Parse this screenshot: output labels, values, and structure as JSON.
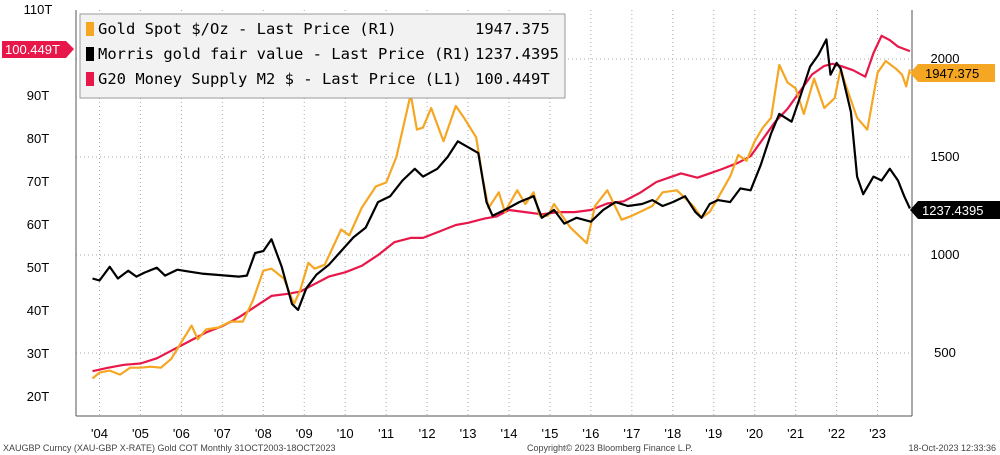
{
  "chart_data": {
    "type": "line",
    "x_labels": [
      "'04",
      "'05",
      "'06",
      "'07",
      "'08",
      "'09",
      "'10",
      "'11",
      "'12",
      "'13",
      "'14",
      "'15",
      "'16",
      "'17",
      "'18",
      "'19",
      "'20",
      "'21",
      "'22",
      "'23"
    ],
    "left_axis": {
      "ticks": [
        "20T",
        "30T",
        "40T",
        "50T",
        "60T",
        "70T",
        "80T",
        "90T",
        "100T",
        "110T"
      ],
      "range": [
        20,
        110
      ],
      "unit": "T"
    },
    "right_axis": {
      "ticks": [
        "500",
        "1000",
        "1500",
        "2000"
      ],
      "range": [
        230,
        2150
      ]
    },
    "legend": [
      {
        "name": "Gold Spot $/Oz - Last Price (R1)",
        "last": "1947.375",
        "color": "#f5a623"
      },
      {
        "name": "Morris gold fair value - Last Price (R1)",
        "last": "1237.4395",
        "color": "#000000"
      },
      {
        "name": "G20 Money Supply M2 $ - Last Price (L1)",
        "last": "100.449T",
        "color": "#e8174a"
      }
    ],
    "tags": {
      "left": "100.449T",
      "right_gold": "1947.375",
      "right_fair": "1237.4395"
    },
    "series": [
      {
        "key": "gold",
        "axis": "right",
        "color": "#f5a623",
        "points": [
          [
            2003.83,
            370
          ],
          [
            2004.0,
            400
          ],
          [
            2004.25,
            410
          ],
          [
            2004.5,
            390
          ],
          [
            2004.75,
            425
          ],
          [
            2005.0,
            425
          ],
          [
            2005.25,
            430
          ],
          [
            2005.5,
            425
          ],
          [
            2005.75,
            470
          ],
          [
            2006.0,
            555
          ],
          [
            2006.25,
            640
          ],
          [
            2006.4,
            570
          ],
          [
            2006.6,
            620
          ],
          [
            2006.9,
            630
          ],
          [
            2007.2,
            660
          ],
          [
            2007.5,
            660
          ],
          [
            2007.75,
            770
          ],
          [
            2008.0,
            920
          ],
          [
            2008.2,
            930
          ],
          [
            2008.5,
            880
          ],
          [
            2008.75,
            750
          ],
          [
            2008.9,
            820
          ],
          [
            2009.1,
            960
          ],
          [
            2009.25,
            930
          ],
          [
            2009.5,
            950
          ],
          [
            2009.9,
            1130
          ],
          [
            2010.1,
            1100
          ],
          [
            2010.4,
            1240
          ],
          [
            2010.75,
            1350
          ],
          [
            2011.0,
            1370
          ],
          [
            2011.25,
            1500
          ],
          [
            2011.6,
            1820
          ],
          [
            2011.75,
            1640
          ],
          [
            2011.9,
            1650
          ],
          [
            2012.1,
            1750
          ],
          [
            2012.4,
            1580
          ],
          [
            2012.7,
            1760
          ],
          [
            2012.9,
            1700
          ],
          [
            2013.2,
            1600
          ],
          [
            2013.35,
            1400
          ],
          [
            2013.5,
            1240
          ],
          [
            2013.75,
            1320
          ],
          [
            2013.9,
            1220
          ],
          [
            2014.2,
            1330
          ],
          [
            2014.4,
            1260
          ],
          [
            2014.6,
            1320
          ],
          [
            2014.75,
            1200
          ],
          [
            2014.95,
            1200
          ],
          [
            2015.1,
            1260
          ],
          [
            2015.5,
            1140
          ],
          [
            2015.9,
            1060
          ],
          [
            2016.1,
            1250
          ],
          [
            2016.4,
            1330
          ],
          [
            2016.75,
            1180
          ],
          [
            2017.0,
            1200
          ],
          [
            2017.5,
            1250
          ],
          [
            2017.75,
            1320
          ],
          [
            2018.1,
            1330
          ],
          [
            2018.5,
            1250
          ],
          [
            2018.7,
            1190
          ],
          [
            2018.9,
            1220
          ],
          [
            2019.1,
            1290
          ],
          [
            2019.4,
            1400
          ],
          [
            2019.6,
            1510
          ],
          [
            2019.8,
            1480
          ],
          [
            2020.0,
            1580
          ],
          [
            2020.2,
            1650
          ],
          [
            2020.4,
            1700
          ],
          [
            2020.6,
            1970
          ],
          [
            2020.8,
            1880
          ],
          [
            2021.0,
            1850
          ],
          [
            2021.2,
            1720
          ],
          [
            2021.45,
            1900
          ],
          [
            2021.7,
            1750
          ],
          [
            2021.95,
            1800
          ],
          [
            2022.1,
            1950
          ],
          [
            2022.2,
            1880
          ],
          [
            2022.5,
            1700
          ],
          [
            2022.75,
            1640
          ],
          [
            2023.0,
            1930
          ],
          [
            2023.2,
            1990
          ],
          [
            2023.45,
            1950
          ],
          [
            2023.6,
            1920
          ],
          [
            2023.7,
            1860
          ],
          [
            2023.79,
            1947
          ]
        ]
      },
      {
        "key": "fair",
        "axis": "right",
        "color": "#000000",
        "points": [
          [
            2003.83,
            880
          ],
          [
            2004.0,
            870
          ],
          [
            2004.25,
            940
          ],
          [
            2004.45,
            880
          ],
          [
            2004.7,
            920
          ],
          [
            2004.9,
            890
          ],
          [
            2005.1,
            910
          ],
          [
            2005.4,
            935
          ],
          [
            2005.6,
            895
          ],
          [
            2005.9,
            925
          ],
          [
            2006.2,
            915
          ],
          [
            2006.5,
            905
          ],
          [
            2006.8,
            900
          ],
          [
            2007.1,
            895
          ],
          [
            2007.4,
            890
          ],
          [
            2007.6,
            895
          ],
          [
            2007.8,
            1010
          ],
          [
            2008.0,
            1020
          ],
          [
            2008.2,
            1080
          ],
          [
            2008.45,
            940
          ],
          [
            2008.7,
            750
          ],
          [
            2008.85,
            720
          ],
          [
            2009.05,
            830
          ],
          [
            2009.3,
            900
          ],
          [
            2009.6,
            950
          ],
          [
            2009.9,
            1020
          ],
          [
            2010.2,
            1090
          ],
          [
            2010.5,
            1140
          ],
          [
            2010.8,
            1270
          ],
          [
            2011.1,
            1300
          ],
          [
            2011.4,
            1380
          ],
          [
            2011.7,
            1440
          ],
          [
            2011.9,
            1400
          ],
          [
            2012.25,
            1440
          ],
          [
            2012.5,
            1500
          ],
          [
            2012.75,
            1580
          ],
          [
            2013.0,
            1550
          ],
          [
            2013.25,
            1520
          ],
          [
            2013.45,
            1270
          ],
          [
            2013.6,
            1200
          ],
          [
            2013.9,
            1230
          ],
          [
            2014.25,
            1270
          ],
          [
            2014.6,
            1300
          ],
          [
            2014.8,
            1190
          ],
          [
            2015.1,
            1230
          ],
          [
            2015.35,
            1160
          ],
          [
            2015.65,
            1190
          ],
          [
            2016.0,
            1170
          ],
          [
            2016.3,
            1230
          ],
          [
            2016.6,
            1270
          ],
          [
            2016.9,
            1250
          ],
          [
            2017.25,
            1260
          ],
          [
            2017.5,
            1280
          ],
          [
            2017.75,
            1250
          ],
          [
            2018.0,
            1270
          ],
          [
            2018.3,
            1300
          ],
          [
            2018.55,
            1220
          ],
          [
            2018.7,
            1190
          ],
          [
            2018.9,
            1260
          ],
          [
            2019.1,
            1280
          ],
          [
            2019.4,
            1270
          ],
          [
            2019.65,
            1340
          ],
          [
            2019.9,
            1330
          ],
          [
            2020.15,
            1460
          ],
          [
            2020.4,
            1620
          ],
          [
            2020.6,
            1720
          ],
          [
            2020.9,
            1680
          ],
          [
            2021.1,
            1800
          ],
          [
            2021.35,
            1960
          ],
          [
            2021.55,
            2020
          ],
          [
            2021.75,
            2100
          ],
          [
            2021.85,
            1920
          ],
          [
            2022.0,
            1980
          ],
          [
            2022.1,
            1950
          ],
          [
            2022.35,
            1730
          ],
          [
            2022.5,
            1400
          ],
          [
            2022.65,
            1310
          ],
          [
            2022.9,
            1400
          ],
          [
            2023.1,
            1380
          ],
          [
            2023.3,
            1440
          ],
          [
            2023.5,
            1380
          ],
          [
            2023.65,
            1300
          ],
          [
            2023.79,
            1237
          ]
        ]
      },
      {
        "key": "m2",
        "axis": "left",
        "color": "#e8174a",
        "points": [
          [
            2003.83,
            26
          ],
          [
            2004.2,
            26.8
          ],
          [
            2004.6,
            27.5
          ],
          [
            2005.0,
            27.8
          ],
          [
            2005.4,
            29
          ],
          [
            2005.8,
            31
          ],
          [
            2006.2,
            33
          ],
          [
            2006.6,
            35
          ],
          [
            2007.0,
            36.5
          ],
          [
            2007.4,
            38.5
          ],
          [
            2007.8,
            41
          ],
          [
            2008.2,
            43.5
          ],
          [
            2008.6,
            44
          ],
          [
            2008.9,
            44.5
          ],
          [
            2009.2,
            46
          ],
          [
            2009.6,
            48
          ],
          [
            2010.0,
            49
          ],
          [
            2010.4,
            50.5
          ],
          [
            2010.8,
            53
          ],
          [
            2011.2,
            56
          ],
          [
            2011.6,
            57
          ],
          [
            2011.9,
            57
          ],
          [
            2012.3,
            58.5
          ],
          [
            2012.7,
            60
          ],
          [
            2013.0,
            60.5
          ],
          [
            2013.4,
            61.5
          ],
          [
            2013.7,
            62
          ],
          [
            2014.0,
            63.5
          ],
          [
            2014.4,
            63
          ],
          [
            2014.8,
            62.5
          ],
          [
            2015.2,
            63
          ],
          [
            2015.6,
            63
          ],
          [
            2016.0,
            63.5
          ],
          [
            2016.4,
            65
          ],
          [
            2016.8,
            65.5
          ],
          [
            2017.2,
            67.5
          ],
          [
            2017.6,
            70
          ],
          [
            2017.9,
            71
          ],
          [
            2018.2,
            72
          ],
          [
            2018.6,
            71
          ],
          [
            2018.9,
            72
          ],
          [
            2019.2,
            73
          ],
          [
            2019.6,
            74.5
          ],
          [
            2019.9,
            76
          ],
          [
            2020.2,
            80
          ],
          [
            2020.5,
            84
          ],
          [
            2020.8,
            87
          ],
          [
            2021.1,
            91
          ],
          [
            2021.4,
            95
          ],
          [
            2021.7,
            97
          ],
          [
            2021.9,
            97.5
          ],
          [
            2022.1,
            97
          ],
          [
            2022.4,
            96
          ],
          [
            2022.7,
            94.5
          ],
          [
            2022.9,
            100
          ],
          [
            2023.1,
            104
          ],
          [
            2023.3,
            103
          ],
          [
            2023.5,
            101.5
          ],
          [
            2023.79,
            100.449
          ]
        ]
      }
    ]
  },
  "footer": {
    "left": "XAUGBP Curncy (XAU-GBP X-RATE) Gold COT  Monthly 31OCT2003-18OCT2023",
    "center": "Copyright© 2023 Bloomberg Finance L.P.",
    "right": "18-Oct-2023 12:33:36"
  }
}
